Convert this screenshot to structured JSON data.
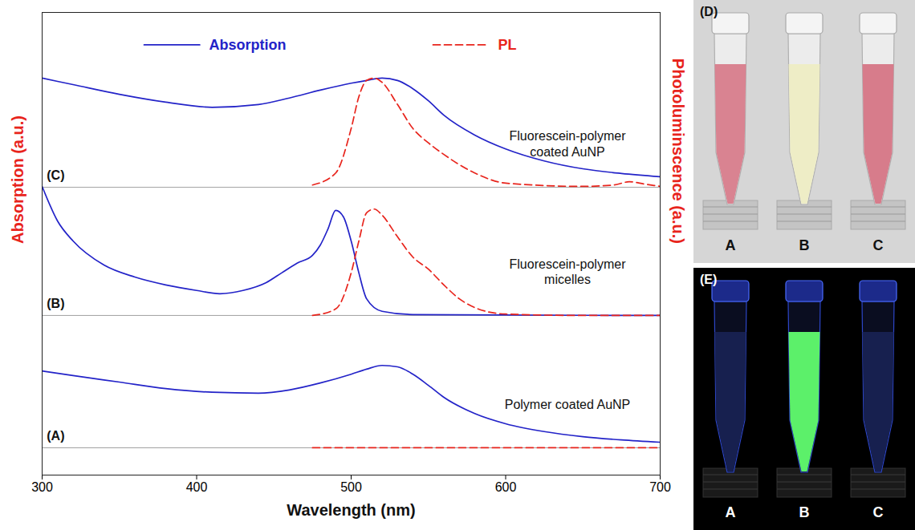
{
  "chart_data": {
    "type": "line",
    "x_label": "Wavelength (nm)",
    "y_label": "Absorption (a.u.)",
    "y2_label": "Photoluminscence (a.u.)",
    "xlim": [
      300,
      700
    ],
    "xticks": [
      300,
      400,
      500,
      600,
      700
    ],
    "ylim": [
      0,
      100
    ],
    "tick_labels": "x",
    "legend": "top",
    "panels": [
      {
        "label": "(A)",
        "title": "Polymer coated AuNP",
        "baseline": 5.9
      },
      {
        "label": "(B)",
        "title": "Fluorescein-polymer micelles",
        "baseline": 34.5
      },
      {
        "label": "(C)",
        "title": "Fluorescein-polymer coated AuNP",
        "baseline": 62.2
      }
    ],
    "series": [
      {
        "name": "Absorption",
        "panel": "(A)",
        "color": "#2323c8",
        "line_style": "solid",
        "x": [
          300,
          320,
          350,
          380,
          410,
          440,
          460,
          480,
          500,
          510,
          520,
          530,
          540,
          550,
          560,
          580,
          600,
          625,
          650,
          675,
          700
        ],
        "values": [
          22.5,
          21.5,
          20.1,
          18.7,
          17.9,
          17.7,
          18.4,
          19.9,
          21.8,
          22.9,
          23.7,
          23.4,
          21.8,
          19.4,
          16.8,
          13.3,
          11.1,
          9.4,
          8.3,
          7.6,
          7.1
        ]
      },
      {
        "name": "PL",
        "panel": "(A)",
        "color": "#e8241c",
        "line_style": "dashed",
        "x": [
          475,
          700
        ],
        "values": [
          5.9,
          5.9
        ]
      },
      {
        "name": "Absorption",
        "panel": "(B)",
        "color": "#2323c8",
        "line_style": "solid",
        "x": [
          300,
          310,
          320,
          340,
          360,
          380,
          400,
          415,
          430,
          445,
          455,
          465,
          475,
          480,
          485,
          490,
          495,
          500,
          505,
          510,
          520,
          540,
          700
        ],
        "values": [
          62.4,
          54.9,
          50.6,
          45.4,
          42.8,
          41.1,
          39.9,
          39.2,
          39.9,
          41.6,
          43.7,
          45.8,
          47.5,
          49.7,
          53.2,
          57.2,
          55.8,
          50.6,
          43.7,
          38.1,
          35.4,
          34.7,
          34.5
        ]
      },
      {
        "name": "PL",
        "panel": "(B)",
        "color": "#e8241c",
        "line_style": "dashed",
        "x": [
          475,
          490,
          500,
          505,
          510,
          515,
          520,
          530,
          540,
          550,
          560,
          570,
          580,
          600,
          650,
          700
        ],
        "values": [
          34.5,
          35.9,
          43.7,
          50.6,
          56.7,
          57.5,
          56.2,
          51.5,
          47.1,
          44.5,
          41.1,
          38.1,
          36.2,
          34.8,
          34.5,
          34.5
        ]
      },
      {
        "name": "Absorption",
        "panel": "(C)",
        "color": "#2323c8",
        "line_style": "solid",
        "x": [
          300,
          320,
          350,
          380,
          410,
          440,
          460,
          480,
          500,
          510,
          520,
          530,
          540,
          550,
          560,
          580,
          600,
          625,
          650,
          675,
          700
        ],
        "values": [
          85.8,
          84.4,
          82.3,
          80.6,
          79.5,
          80.1,
          81.5,
          83.2,
          84.7,
          85.3,
          85.8,
          85.3,
          83.5,
          80.9,
          77.8,
          73.5,
          70.5,
          67.9,
          66.2,
          65.2,
          64.5
        ]
      },
      {
        "name": "PL",
        "panel": "(C)",
        "color": "#e8241c",
        "line_style": "dashed",
        "x": [
          475,
          490,
          500,
          505,
          510,
          515,
          520,
          530,
          540,
          550,
          560,
          580,
          600,
          650,
          670,
          680,
          690,
          700
        ],
        "values": [
          62.7,
          65.3,
          74.9,
          81.8,
          85.3,
          85.8,
          84.9,
          80.1,
          74.9,
          71.8,
          69.3,
          65.3,
          63.1,
          62.4,
          62.7,
          63.4,
          62.9,
          62.4
        ]
      }
    ]
  },
  "images": [
    {
      "label": "(D)",
      "background": "#d6d6d6",
      "samples": [
        {
          "label": "A",
          "color": "#d98391"
        },
        {
          "label": "B",
          "color": "#eeedc6"
        },
        {
          "label": "C",
          "color": "#d77c8b"
        }
      ]
    },
    {
      "label": "(E)",
      "background": "#000000",
      "samples": [
        {
          "label": "A",
          "color": "#17204f"
        },
        {
          "label": "B",
          "color": "#5cf06a"
        },
        {
          "label": "C",
          "color": "#17204f"
        }
      ]
    }
  ]
}
